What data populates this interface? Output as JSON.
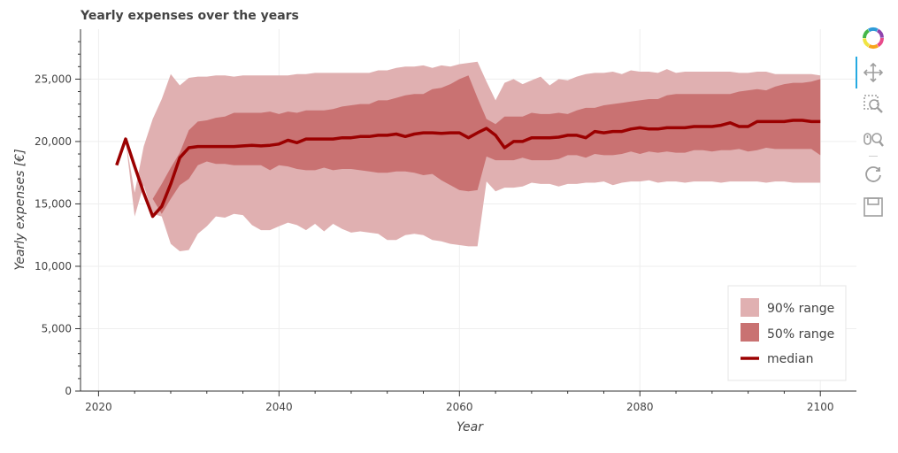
{
  "chart_data": {
    "type": "area",
    "title": "Yearly expenses over the years",
    "xlabel": "Year",
    "ylabel": "Yearly expenses [€]",
    "xlim": [
      2018,
      2104
    ],
    "ylim": [
      0,
      29000
    ],
    "x_ticks": [
      2020,
      2040,
      2060,
      2080,
      2100
    ],
    "y_ticks": [
      0,
      5000,
      10000,
      15000,
      20000,
      25000
    ],
    "x_tick_labels": [
      "2020",
      "2040",
      "2060",
      "2080",
      "2100"
    ],
    "y_tick_labels": [
      "0",
      "5,000",
      "10,000",
      "15,000",
      "20,000",
      "25,000"
    ],
    "grid": true,
    "legend_position": "bottom-right",
    "years": [
      2022,
      2023,
      2024,
      2025,
      2026,
      2027,
      2028,
      2029,
      2030,
      2031,
      2032,
      2033,
      2034,
      2035,
      2036,
      2037,
      2038,
      2039,
      2040,
      2041,
      2042,
      2043,
      2044,
      2045,
      2046,
      2047,
      2048,
      2049,
      2050,
      2051,
      2052,
      2053,
      2054,
      2055,
      2056,
      2057,
      2058,
      2059,
      2060,
      2061,
      2062,
      2063,
      2064,
      2065,
      2066,
      2067,
      2068,
      2069,
      2070,
      2071,
      2072,
      2073,
      2074,
      2075,
      2076,
      2077,
      2078,
      2079,
      2080,
      2081,
      2082,
      2083,
      2084,
      2085,
      2086,
      2087,
      2088,
      2089,
      2090,
      2091,
      2092,
      2093,
      2094,
      2095,
      2096,
      2097,
      2098,
      2099,
      2100
    ],
    "series": [
      {
        "name": "90% range",
        "kind": "band",
        "color": "#e0b0b1",
        "lower": [
          18000,
          20100,
          14000,
          16500,
          14200,
          14000,
          11800,
          11200,
          11300,
          12600,
          13200,
          14000,
          13900,
          14200,
          14100,
          13300,
          12900,
          12900,
          13200,
          13500,
          13300,
          12900,
          13400,
          12800,
          13400,
          13000,
          12700,
          12800,
          12700,
          12600,
          12100,
          12100,
          12500,
          12600,
          12500,
          12100,
          12000,
          11800,
          11700,
          11600,
          11600,
          16800,
          16000,
          16300,
          16300,
          16400,
          16700,
          16600,
          16600,
          16400,
          16600,
          16600,
          16700,
          16700,
          16800,
          16500,
          16700,
          16800,
          16800,
          16900,
          16700,
          16800,
          16800,
          16700,
          16800,
          16800,
          16800,
          16700,
          16800,
          16800,
          16800,
          16800,
          16700,
          16800,
          16800,
          16700,
          16700,
          16700,
          16700
        ],
        "upper": [
          18000,
          20100,
          15900,
          19600,
          21800,
          23400,
          25400,
          24500,
          25100,
          25200,
          25200,
          25300,
          25300,
          25200,
          25300,
          25300,
          25300,
          25300,
          25300,
          25300,
          25400,
          25400,
          25500,
          25500,
          25500,
          25500,
          25500,
          25500,
          25500,
          25700,
          25700,
          25900,
          26000,
          26000,
          26100,
          25900,
          26100,
          26000,
          26200,
          26300,
          26400,
          24800,
          23300,
          24700,
          25000,
          24600,
          24900,
          25200,
          24500,
          25000,
          24900,
          25200,
          25400,
          25500,
          25500,
          25600,
          25400,
          25700,
          25600,
          25600,
          25500,
          25800,
          25500,
          25600,
          25600,
          25600,
          25600,
          25600,
          25600,
          25500,
          25500,
          25600,
          25600,
          25400,
          25400,
          25400,
          25400,
          25400,
          25300
        ]
      },
      {
        "name": "50% range",
        "kind": "band",
        "color": "#c97272",
        "lower": [
          18000,
          20100,
          15900,
          16100,
          15400,
          14200,
          15400,
          16500,
          17000,
          18100,
          18400,
          18200,
          18200,
          18100,
          18100,
          18100,
          18100,
          17700,
          18100,
          18000,
          17800,
          17700,
          17700,
          17900,
          17700,
          17800,
          17800,
          17700,
          17600,
          17500,
          17500,
          17600,
          17600,
          17500,
          17300,
          17400,
          16900,
          16500,
          16100,
          16000,
          16100,
          18800,
          18500,
          18500,
          18500,
          18700,
          18500,
          18500,
          18500,
          18600,
          18900,
          18900,
          18700,
          19000,
          18900,
          18900,
          19000,
          19200,
          19000,
          19200,
          19100,
          19200,
          19100,
          19100,
          19300,
          19300,
          19200,
          19300,
          19300,
          19400,
          19200,
          19300,
          19500,
          19400,
          19400,
          19400,
          19400,
          19400,
          18900
        ],
        "upper": [
          18000,
          20100,
          15900,
          16100,
          15400,
          16600,
          17900,
          19100,
          20900,
          21600,
          21700,
          21900,
          22000,
          22300,
          22300,
          22300,
          22300,
          22400,
          22200,
          22400,
          22300,
          22500,
          22500,
          22500,
          22600,
          22800,
          22900,
          23000,
          23000,
          23300,
          23300,
          23500,
          23700,
          23800,
          23800,
          24200,
          24300,
          24600,
          25000,
          25300,
          23500,
          21800,
          21400,
          22000,
          22000,
          22000,
          22300,
          22200,
          22200,
          22300,
          22200,
          22500,
          22700,
          22700,
          22900,
          23000,
          23100,
          23200,
          23300,
          23400,
          23400,
          23700,
          23800,
          23800,
          23800,
          23800,
          23800,
          23800,
          23800,
          24000,
          24100,
          24200,
          24100,
          24400,
          24600,
          24700,
          24700,
          24800,
          25000
        ]
      },
      {
        "name": "median",
        "kind": "line",
        "color": "#9b0000",
        "values": [
          18100,
          20200,
          18000,
          15900,
          14000,
          14800,
          16600,
          18700,
          19500,
          19600,
          19600,
          19600,
          19600,
          19600,
          19650,
          19700,
          19650,
          19700,
          19800,
          20100,
          19900,
          20200,
          20200,
          20200,
          20200,
          20300,
          20300,
          20400,
          20400,
          20500,
          20500,
          20600,
          20400,
          20600,
          20700,
          20700,
          20650,
          20700,
          20700,
          20300,
          20700,
          21050,
          20500,
          19500,
          20000,
          20000,
          20300,
          20300,
          20300,
          20350,
          20500,
          20500,
          20300,
          20800,
          20700,
          20800,
          20800,
          21000,
          21100,
          21000,
          21000,
          21100,
          21100,
          21100,
          21200,
          21200,
          21200,
          21300,
          21500,
          21200,
          21200,
          21600,
          21600,
          21600,
          21600,
          21700,
          21700,
          21600,
          21600
        ]
      }
    ]
  },
  "toolbar": {
    "logo_icon": "bokeh-logo-icon",
    "tools": [
      "pan-icon",
      "box-zoom-icon",
      "wheel-zoom-icon",
      "reset-icon",
      "save-icon"
    ],
    "active_color": "#26aae1"
  }
}
